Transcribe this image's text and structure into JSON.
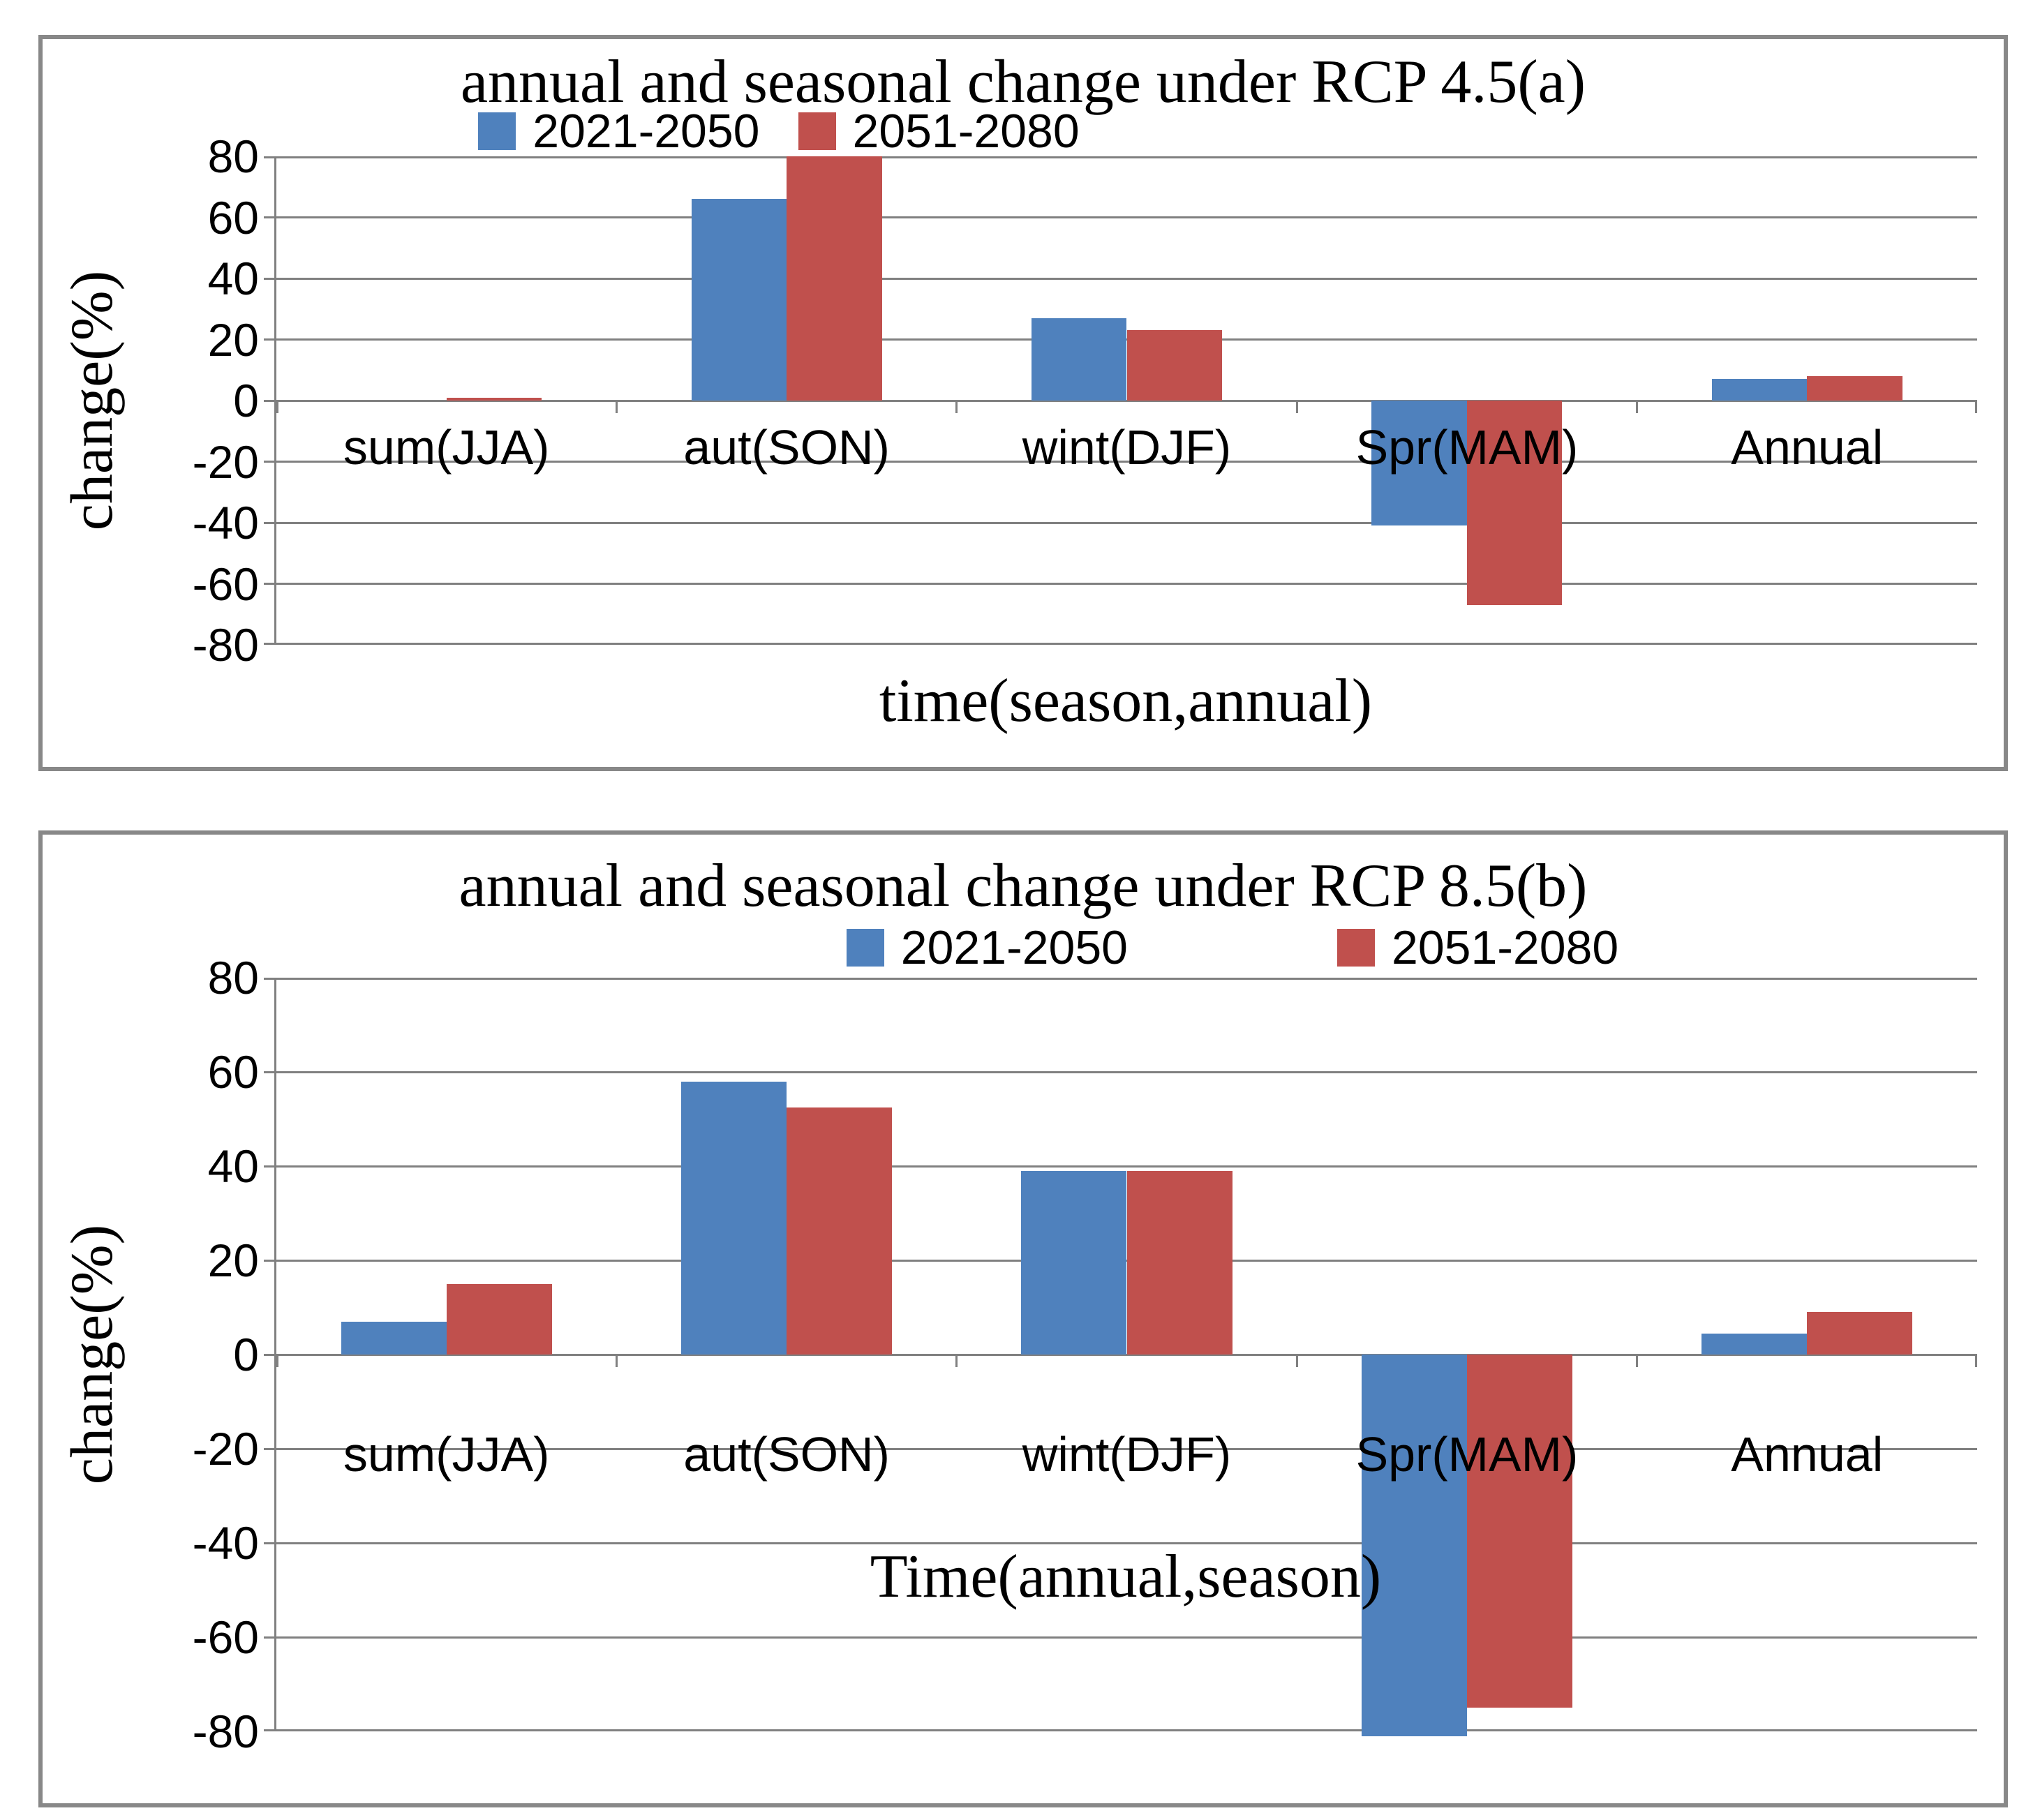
{
  "chart_data": [
    {
      "id": "a",
      "type": "bar",
      "title": "annual and seasonal change under RCP 4.5(a)",
      "xlabel": "time(season,annual)",
      "ylabel": "change(%)",
      "ylim": [
        -80,
        80
      ],
      "ytick_step": 20,
      "grid": true,
      "legend_position": "top-center",
      "categories": [
        "sum(JJA)",
        "aut(SON)",
        "wint(DJF)",
        "Spr(MAM)",
        "Annual"
      ],
      "series": [
        {
          "name": "2021-2050",
          "color": "#4f81bd",
          "values": [
            0,
            66,
            27,
            -41,
            7
          ]
        },
        {
          "name": "2051-2080",
          "color": "#c0504d",
          "values": [
            1,
            80,
            23,
            -67,
            8
          ]
        }
      ]
    },
    {
      "id": "b",
      "type": "bar",
      "title": "annual and seasonal change under RCP 8.5(b)",
      "xlabel": "Time(annual,season)",
      "ylabel": "change(%)",
      "ylim": [
        -80,
        80
      ],
      "ytick_step": 20,
      "grid": true,
      "legend_position": "top-center",
      "categories": [
        "sum(JJA)",
        "aut(SON)",
        "wint(DJF)",
        "Spr(MAM)",
        "Annual"
      ],
      "series": [
        {
          "name": "2021-2050",
          "color": "#4f81bd",
          "values": [
            7,
            58,
            39,
            -81,
            4.5
          ]
        },
        {
          "name": "2051-2080",
          "color": "#c0504d",
          "values": [
            15,
            52.5,
            39,
            -75,
            9
          ]
        }
      ]
    }
  ]
}
